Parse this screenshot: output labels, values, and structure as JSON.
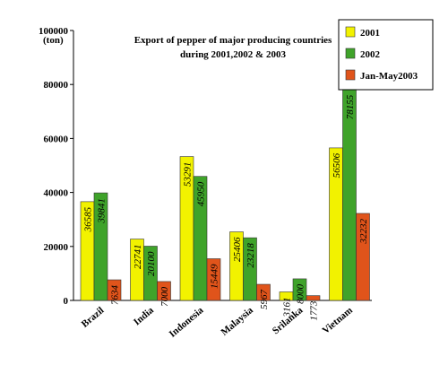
{
  "chart_data": {
    "type": "bar",
    "title_lines": [
      "Export of pepper of major producing countries",
      "during 2001,2002 & 2003"
    ],
    "unit": "(ton)",
    "categories": [
      "Brazil",
      "India",
      "Indonesia",
      "Malaysia",
      "Srilanka",
      "Vietnam"
    ],
    "series": [
      {
        "name": "2001",
        "color": "#f2f200",
        "values": [
          36585,
          22741,
          53291,
          25406,
          3161,
          56506
        ]
      },
      {
        "name": "2002",
        "color": "#3fa32a",
        "values": [
          39841,
          20100,
          45950,
          23218,
          8000,
          78155
        ]
      },
      {
        "name": "Jan-May2003",
        "color": "#e0541b",
        "values": [
          7634,
          7000,
          15449,
          5967,
          1773,
          32232
        ]
      }
    ],
    "data_labels": [
      [
        "36585",
        "22741",
        "53291",
        "25406",
        "3161",
        "56506"
      ],
      [
        "39841",
        "20100",
        "45950",
        "23218",
        "8000",
        "78155"
      ],
      [
        "7634",
        "7000",
        "15449",
        "5967",
        "1773",
        "32232"
      ]
    ],
    "yticks": [
      0,
      20000,
      40000,
      60000,
      80000,
      100000
    ],
    "ytick_labels": [
      "0",
      "20000",
      "40000",
      "60000",
      "80000",
      "100000"
    ],
    "ylim": [
      0,
      100000
    ],
    "grid": false,
    "legend_position": "top-right"
  }
}
